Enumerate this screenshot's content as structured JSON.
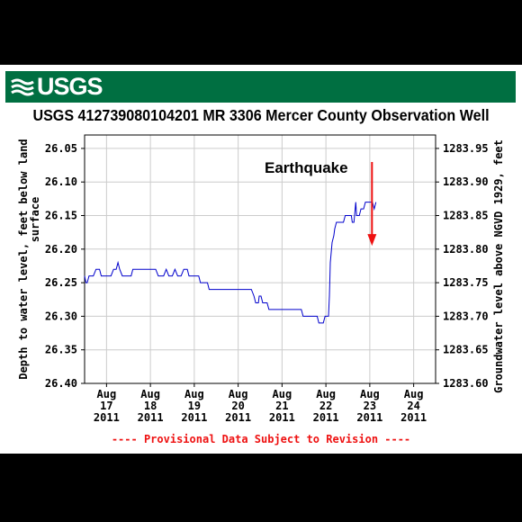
{
  "header": {
    "logo_text": "USGS",
    "title": "USGS 412739080104201 MR  3306 Mercer County Observation Well"
  },
  "footer": {
    "provisional_text": "---- Provisional Data Subject to Revision ----"
  },
  "colors": {
    "banner": "#006f41",
    "series": "#0000cc",
    "annotation": "#ee1111",
    "provisional": "#ee1111"
  },
  "chart_data": {
    "type": "line",
    "title": "USGS 412739080104201 MR  3306 Mercer County Observation Well",
    "ylabel_left": [
      "Depth to water level, feet below land",
      "surface"
    ],
    "ylabel_right": "Groundwater level above NGVD 1929, feet",
    "ylim_left": [
      26.4,
      26.03
    ],
    "ylim_right": [
      1283.6,
      1283.97
    ],
    "y_inverted_left": true,
    "left_ticks": [
      "26.05",
      "26.10",
      "26.15",
      "26.20",
      "26.25",
      "26.30",
      "26.35",
      "26.40"
    ],
    "right_ticks": [
      "1283.95",
      "1283.90",
      "1283.85",
      "1283.80",
      "1283.75",
      "1283.70",
      "1283.65",
      "1283.60"
    ],
    "x_ticks": [
      {
        "day": 17,
        "month": "Aug",
        "date": "17",
        "year": "2011"
      },
      {
        "day": 18,
        "month": "Aug",
        "date": "18",
        "year": "2011"
      },
      {
        "day": 19,
        "month": "Aug",
        "date": "19",
        "year": "2011"
      },
      {
        "day": 20,
        "month": "Aug",
        "date": "20",
        "year": "2011"
      },
      {
        "day": 21,
        "month": "Aug",
        "date": "21",
        "year": "2011"
      },
      {
        "day": 22,
        "month": "Aug",
        "date": "22",
        "year": "2011"
      },
      {
        "day": 23,
        "month": "Aug",
        "date": "23",
        "year": "2011"
      },
      {
        "day": 24,
        "month": "Aug",
        "date": "24",
        "year": "2011"
      }
    ],
    "xlim": [
      16.5,
      24.5
    ],
    "grid": true,
    "annotation": {
      "text": "Earthquake",
      "x": 23.05,
      "y": 26.195
    },
    "series": [
      {
        "points": [
          [
            16.5,
            26.24
          ],
          [
            16.53,
            26.25
          ],
          [
            16.56,
            26.25
          ],
          [
            16.6,
            26.24
          ],
          [
            16.7,
            26.24
          ],
          [
            16.76,
            26.23
          ],
          [
            16.84,
            26.23
          ],
          [
            16.88,
            26.24
          ],
          [
            17.1,
            26.24
          ],
          [
            17.16,
            26.23
          ],
          [
            17.22,
            26.23
          ],
          [
            17.26,
            26.22
          ],
          [
            17.3,
            26.23
          ],
          [
            17.36,
            26.24
          ],
          [
            17.56,
            26.24
          ],
          [
            17.6,
            26.23
          ],
          [
            18.12,
            26.23
          ],
          [
            18.18,
            26.24
          ],
          [
            18.3,
            26.24
          ],
          [
            18.36,
            26.23
          ],
          [
            18.42,
            26.24
          ],
          [
            18.5,
            26.24
          ],
          [
            18.56,
            26.23
          ],
          [
            18.62,
            26.24
          ],
          [
            18.7,
            26.24
          ],
          [
            18.76,
            26.23
          ],
          [
            18.84,
            26.23
          ],
          [
            18.88,
            26.24
          ],
          [
            19.1,
            26.24
          ],
          [
            19.14,
            26.25
          ],
          [
            19.3,
            26.25
          ],
          [
            19.34,
            26.26
          ],
          [
            20.3,
            26.26
          ],
          [
            20.36,
            26.27
          ],
          [
            20.4,
            26.28
          ],
          [
            20.46,
            26.28
          ],
          [
            20.48,
            26.27
          ],
          [
            20.52,
            26.27
          ],
          [
            20.56,
            26.28
          ],
          [
            20.66,
            26.28
          ],
          [
            20.7,
            26.29
          ],
          [
            21.44,
            26.29
          ],
          [
            21.48,
            26.3
          ],
          [
            21.8,
            26.3
          ],
          [
            21.84,
            26.31
          ],
          [
            21.94,
            26.31
          ],
          [
            21.98,
            26.3
          ],
          [
            22.06,
            26.3
          ],
          [
            22.08,
            26.27
          ],
          [
            22.1,
            26.22
          ],
          [
            22.14,
            26.19
          ],
          [
            22.18,
            26.18
          ],
          [
            22.2,
            26.17
          ],
          [
            22.24,
            26.16
          ],
          [
            22.4,
            26.16
          ],
          [
            22.44,
            26.15
          ],
          [
            22.58,
            26.15
          ],
          [
            22.6,
            26.16
          ],
          [
            22.64,
            26.16
          ],
          [
            22.68,
            26.13
          ],
          [
            22.7,
            26.15
          ],
          [
            22.76,
            26.15
          ],
          [
            22.8,
            26.14
          ],
          [
            22.86,
            26.14
          ],
          [
            22.9,
            26.13
          ],
          [
            23.06,
            26.13
          ],
          [
            23.1,
            26.14
          ],
          [
            23.14,
            26.13
          ]
        ]
      }
    ]
  }
}
